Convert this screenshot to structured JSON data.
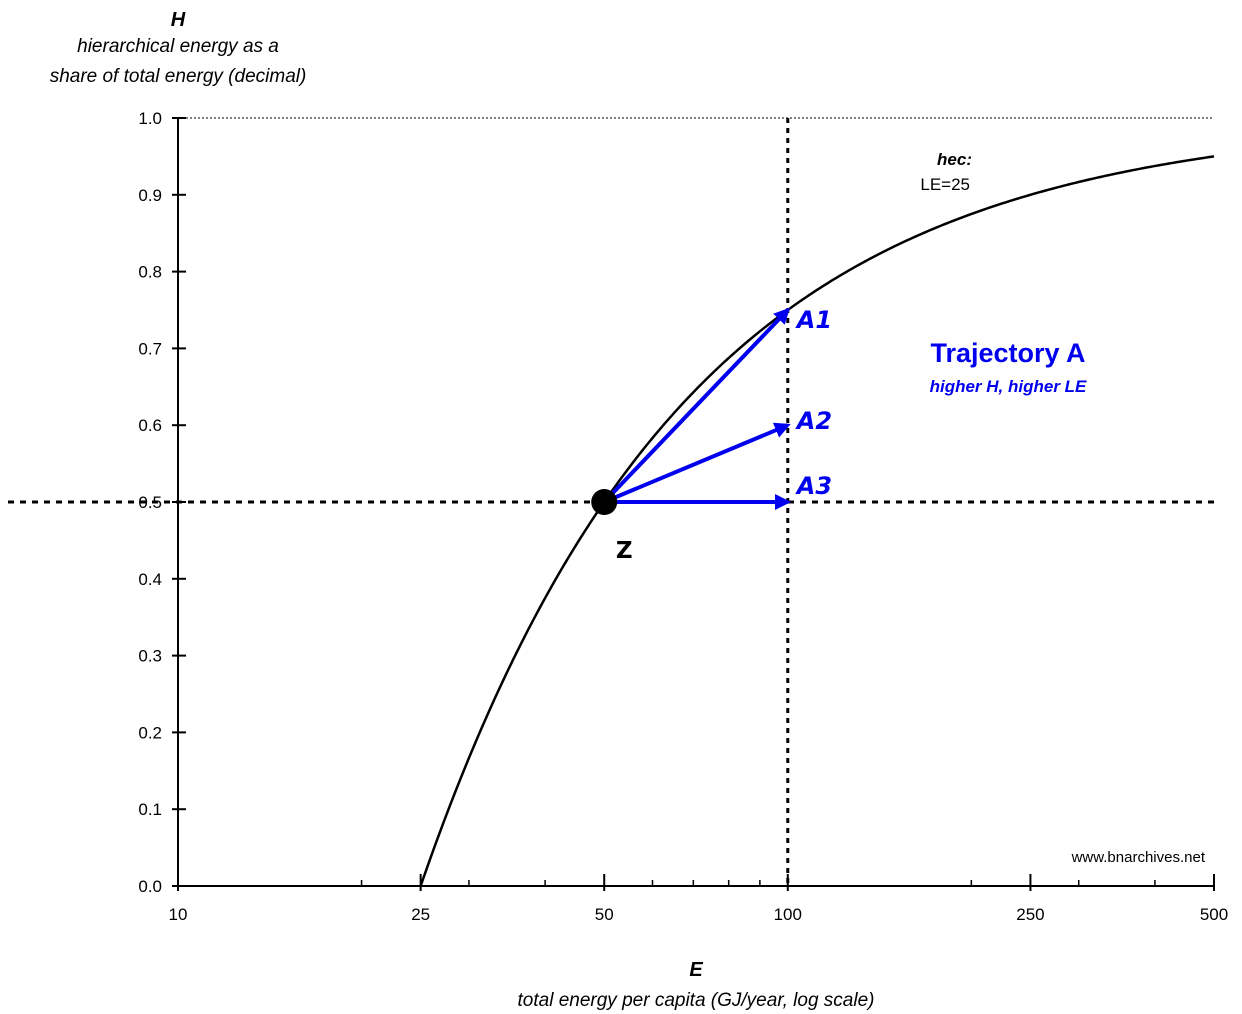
{
  "chart_data": {
    "type": "line",
    "title": "",
    "ylabel_symbol": "H",
    "ylabel_line1": "hierarchical energy as a",
    "ylabel_line2": "share of total energy (decimal)",
    "xlabel_symbol": "E",
    "xlabel": "total energy per capita (GJ/year, log scale)",
    "x_scale": "log",
    "xlim": [
      10,
      500
    ],
    "ylim": [
      0,
      1
    ],
    "x_ticks": [
      10,
      25,
      50,
      100,
      250,
      500
    ],
    "y_ticks": [
      "0.0",
      "0.1",
      "0.2",
      "0.3",
      "0.4",
      "0.5",
      "0.6",
      "0.7",
      "0.8",
      "0.9",
      "1.0"
    ],
    "curve": {
      "name_bold": "hec:",
      "name_label": "LE=25",
      "formula": "H = 1 - LE/E",
      "LE": 25,
      "color": "#000000"
    },
    "reference_lines": {
      "x": 100,
      "y": 0.5,
      "top": 1.0
    },
    "point": {
      "label": "Z",
      "x": 50,
      "y": 0.5
    },
    "arrows": [
      {
        "label": "A1",
        "from": [
          50,
          0.5
        ],
        "to": [
          100,
          0.75
        ]
      },
      {
        "label": "A2",
        "from": [
          50,
          0.5
        ],
        "to": [
          100,
          0.6
        ]
      },
      {
        "label": "A3",
        "from": [
          50,
          0.5
        ],
        "to": [
          100,
          0.5
        ]
      }
    ],
    "annotation_title": "Trajectory A",
    "annotation_subtitle": "higher H, higher LE",
    "accent_color": "#0000ee",
    "watermark": "www.bnarchives.net",
    "grid": false,
    "legend": "none"
  }
}
